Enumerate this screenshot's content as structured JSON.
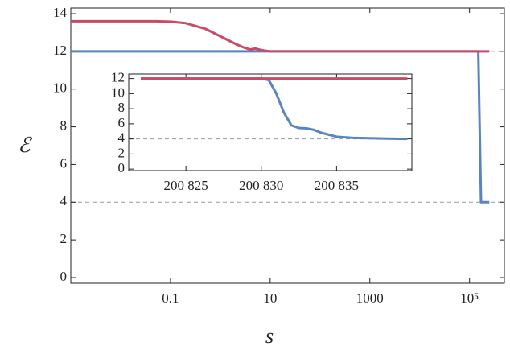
{
  "chart_data": [
    {
      "type": "line",
      "xlabel": "s",
      "ylabel": "ℰ",
      "xscale": "log",
      "xlim": [
        0.001,
        500000
      ],
      "ylim": [
        -0.3,
        14.3
      ],
      "xticks": [
        0.1,
        10,
        1000,
        {
          "value": 100000,
          "label": "10⁵"
        }
      ],
      "yticks": [
        0,
        2,
        4,
        6,
        8,
        10,
        12,
        14
      ],
      "hlines": [
        12,
        4
      ],
      "series": [
        {
          "color": "#5a84bf",
          "x": [
            0.001,
            150000,
            170000,
            250000
          ],
          "values": [
            12,
            12,
            4,
            4
          ]
        },
        {
          "color": "#c84b67",
          "x": [
            0.001,
            0.01,
            0.05,
            0.1,
            0.2,
            0.5,
            1,
            2,
            3,
            4,
            5,
            6,
            8,
            10,
            100,
            1000,
            10000,
            100000,
            250000
          ],
          "values": [
            13.6,
            13.6,
            13.6,
            13.58,
            13.5,
            13.2,
            12.8,
            12.4,
            12.2,
            12.1,
            12.15,
            12.1,
            12.03,
            12.0,
            12.0,
            12.0,
            12.0,
            12.0,
            12.0
          ]
        }
      ]
    },
    {
      "type": "line",
      "xscale": "linear",
      "xlim": [
        200821.2,
        200840
      ],
      "ylim": [
        -0.2,
        12.6
      ],
      "xticks": [
        {
          "value": 200825,
          "label": "200 825"
        },
        {
          "value": 200830,
          "label": "200 830"
        },
        {
          "value": 200835,
          "label": "200 835"
        }
      ],
      "yticks": [
        0,
        2,
        4,
        6,
        8,
        10,
        12
      ],
      "hlines": [
        4
      ],
      "series": [
        {
          "color": "#5a84bf",
          "x": [
            200822,
            200830,
            200830.5,
            200831,
            200831.5,
            200832,
            200832.5,
            200833,
            200833.5,
            200834,
            200835,
            200836,
            200838,
            200839.7
          ],
          "values": [
            12,
            12,
            11.8,
            10,
            7.5,
            5.8,
            5.45,
            5.4,
            5.2,
            4.8,
            4.3,
            4.15,
            4.05,
            4.0
          ]
        },
        {
          "color": "#c84b67",
          "x": [
            200822,
            200839.7
          ],
          "values": [
            12,
            12
          ]
        }
      ]
    }
  ]
}
